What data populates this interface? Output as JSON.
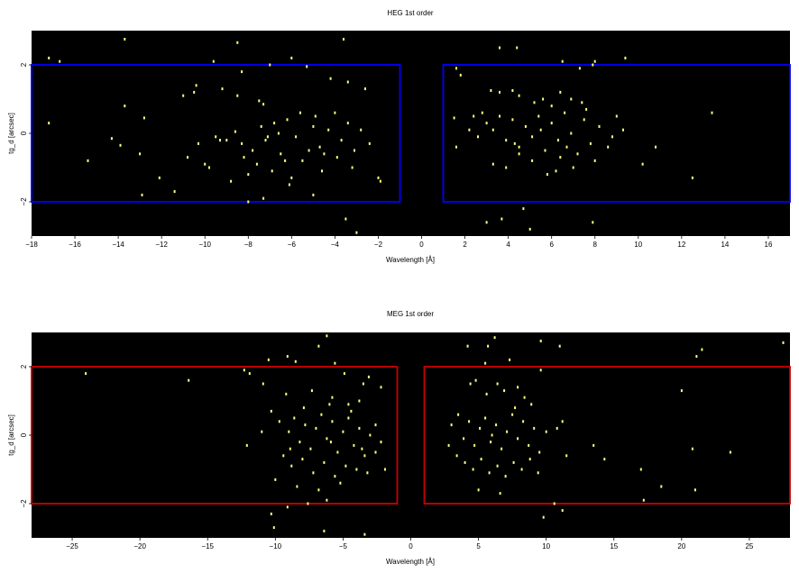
{
  "chart_data": [
    {
      "type": "scatter",
      "title": "HEG 1st order",
      "xlabel": "Wavelength [Å]",
      "ylabel": "tg_d [arcsec]",
      "xlim": [
        -18,
        17
      ],
      "ylim": [
        -3,
        3
      ],
      "xticks": [
        -18,
        -16,
        -14,
        -12,
        -10,
        -8,
        -6,
        -4,
        -2,
        0,
        2,
        4,
        6,
        8,
        10,
        12,
        14,
        16
      ],
      "yticks": [
        -2,
        0,
        2
      ],
      "background": "#000000",
      "point_color": "#ffff80",
      "region_color": "#0000ff",
      "regions": [
        {
          "x": [
            -18,
            -1
          ],
          "y": [
            -2,
            2
          ]
        },
        {
          "x": [
            1,
            17
          ],
          "y": [
            -2,
            2
          ]
        }
      ],
      "points": [
        [
          -13.7,
          2.75
        ],
        [
          -8.5,
          2.65
        ],
        [
          -3.6,
          2.75
        ],
        [
          -17.2,
          2.2
        ],
        [
          -16.7,
          2.1
        ],
        [
          -9.6,
          2.1
        ],
        [
          -6.0,
          2.2
        ],
        [
          -7.0,
          2.0
        ],
        [
          -5.3,
          1.95
        ],
        [
          -8.3,
          1.8
        ],
        [
          -11.0,
          1.1
        ],
        [
          -10.5,
          1.2
        ],
        [
          -10.4,
          1.4
        ],
        [
          -9.2,
          1.3
        ],
        [
          -8.5,
          1.1
        ],
        [
          -7.5,
          0.95
        ],
        [
          -7.3,
          0.85
        ],
        [
          -4.2,
          1.6
        ],
        [
          -3.4,
          1.5
        ],
        [
          -2.6,
          1.3
        ],
        [
          -13.7,
          0.8
        ],
        [
          -12.8,
          0.45
        ],
        [
          -17.2,
          0.3
        ],
        [
          -14.3,
          -0.15
        ],
        [
          -13.9,
          -0.35
        ],
        [
          -15.4,
          -0.8
        ],
        [
          -13.0,
          -0.6
        ],
        [
          -12.1,
          -1.3
        ],
        [
          -10.0,
          -0.9
        ],
        [
          -10.8,
          -0.7
        ],
        [
          -9.0,
          -0.2
        ],
        [
          -8.6,
          0.05
        ],
        [
          -8.3,
          -0.3
        ],
        [
          -7.8,
          -0.5
        ],
        [
          -7.2,
          -0.2
        ],
        [
          -6.8,
          0.3
        ],
        [
          -6.5,
          -0.6
        ],
        [
          -6.2,
          0.4
        ],
        [
          -5.8,
          -0.1
        ],
        [
          -5.5,
          -0.8
        ],
        [
          -5.0,
          0.2
        ],
        [
          -4.7,
          -0.4
        ],
        [
          -4.3,
          0.1
        ],
        [
          -4.0,
          0.6
        ],
        [
          -3.7,
          -0.2
        ],
        [
          -3.4,
          0.3
        ],
        [
          -3.1,
          -0.5
        ],
        [
          -2.8,
          0.1
        ],
        [
          -2.4,
          -0.3
        ],
        [
          -2.0,
          -1.3
        ],
        [
          -9.3,
          -0.2
        ],
        [
          -9.8,
          -1.0
        ],
        [
          -8.0,
          -1.2
        ],
        [
          -7.6,
          -0.9
        ],
        [
          -6.9,
          -1.1
        ],
        [
          -6.0,
          -1.3
        ],
        [
          -4.5,
          -0.6
        ],
        [
          -3.2,
          -1.0
        ],
        [
          -8.8,
          -1.4
        ],
        [
          -7.1,
          -0.1
        ],
        [
          -6.6,
          0.0
        ],
        [
          -5.2,
          -0.5
        ],
        [
          -4.9,
          0.5
        ],
        [
          -3.9,
          -0.7
        ],
        [
          -5.6,
          0.6
        ],
        [
          -7.4,
          0.2
        ],
        [
          -8.2,
          -0.7
        ],
        [
          -9.5,
          -0.1
        ],
        [
          -8.0,
          -2.0
        ],
        [
          -7.3,
          -1.9
        ],
        [
          -6.1,
          -1.5
        ],
        [
          -3.5,
          -2.5
        ],
        [
          -5.0,
          -1.8
        ],
        [
          -11.4,
          -1.7
        ],
        [
          -12.9,
          -1.8
        ],
        [
          -10.3,
          -0.3
        ],
        [
          -3.0,
          -2.9
        ],
        [
          -1.9,
          -1.4
        ],
        [
          -4.6,
          -1.1
        ],
        [
          -6.3,
          -0.8
        ],
        [
          1.6,
          1.9
        ],
        [
          1.8,
          1.7
        ],
        [
          3.6,
          2.5
        ],
        [
          4.4,
          2.5
        ],
        [
          6.5,
          2.1
        ],
        [
          7.3,
          1.9
        ],
        [
          7.9,
          2.0
        ],
        [
          9.4,
          2.2
        ],
        [
          8.0,
          2.1
        ],
        [
          3.2,
          1.25
        ],
        [
          3.6,
          1.2
        ],
        [
          4.2,
          1.25
        ],
        [
          4.5,
          1.1
        ],
        [
          5.2,
          0.9
        ],
        [
          5.6,
          1.0
        ],
        [
          6.0,
          0.8
        ],
        [
          6.4,
          1.2
        ],
        [
          6.9,
          1.0
        ],
        [
          7.4,
          0.9
        ],
        [
          1.5,
          0.45
        ],
        [
          2.4,
          0.5
        ],
        [
          2.8,
          0.6
        ],
        [
          3.0,
          0.3
        ],
        [
          3.3,
          0.1
        ],
        [
          3.6,
          0.5
        ],
        [
          3.9,
          -0.2
        ],
        [
          4.2,
          0.4
        ],
        [
          4.5,
          -0.4
        ],
        [
          4.8,
          0.2
        ],
        [
          5.1,
          -0.1
        ],
        [
          5.4,
          0.5
        ],
        [
          5.7,
          -0.5
        ],
        [
          6.0,
          0.3
        ],
        [
          6.3,
          -0.2
        ],
        [
          6.6,
          0.6
        ],
        [
          6.9,
          0.0
        ],
        [
          7.2,
          -0.6
        ],
        [
          7.5,
          0.4
        ],
        [
          7.8,
          -0.3
        ],
        [
          8.2,
          0.2
        ],
        [
          8.6,
          -0.4
        ],
        [
          9.0,
          0.5
        ],
        [
          9.3,
          0.1
        ],
        [
          10.8,
          -0.4
        ],
        [
          13.4,
          0.6
        ],
        [
          1.6,
          -0.4
        ],
        [
          2.6,
          -0.1
        ],
        [
          3.3,
          -0.9
        ],
        [
          3.9,
          -1.0
        ],
        [
          4.5,
          -0.6
        ],
        [
          5.1,
          -0.8
        ],
        [
          5.8,
          -1.2
        ],
        [
          6.4,
          -0.7
        ],
        [
          7.0,
          -1.0
        ],
        [
          8.0,
          -0.8
        ],
        [
          10.2,
          -0.9
        ],
        [
          12.5,
          -1.3
        ],
        [
          4.7,
          -2.2
        ],
        [
          3.7,
          -2.5
        ],
        [
          3.0,
          -2.6
        ],
        [
          5.0,
          -2.8
        ],
        [
          7.9,
          -2.6
        ],
        [
          6.2,
          -1.1
        ],
        [
          4.3,
          -0.3
        ],
        [
          5.5,
          0.1
        ],
        [
          6.7,
          -0.4
        ],
        [
          7.6,
          0.7
        ],
        [
          8.8,
          -0.1
        ],
        [
          2.2,
          0.1
        ]
      ]
    },
    {
      "type": "scatter",
      "title": "MEG 1st order",
      "xlabel": "Wavelength [Å]",
      "ylabel": "tg_d [arcsec]",
      "xlim": [
        -28,
        28
      ],
      "ylim": [
        -3,
        3
      ],
      "xticks": [
        -25,
        -20,
        -15,
        -10,
        -5,
        0,
        5,
        10,
        15,
        20,
        25
      ],
      "yticks": [
        -2,
        0,
        2
      ],
      "background": "#000000",
      "point_color": "#ffff80",
      "region_color": "#cc0000",
      "regions": [
        {
          "x": [
            -28,
            -1
          ],
          "y": [
            -2,
            2
          ]
        },
        {
          "x": [
            1,
            28
          ],
          "y": [
            -2,
            2
          ]
        }
      ],
      "points": [
        [
          -6.2,
          2.9
        ],
        [
          -6.8,
          2.6
        ],
        [
          -9.1,
          2.3
        ],
        [
          -10.5,
          2.2
        ],
        [
          -5.6,
          2.1
        ],
        [
          -8.5,
          2.15
        ],
        [
          -24.0,
          1.8
        ],
        [
          -16.4,
          1.6
        ],
        [
          -12.3,
          1.9
        ],
        [
          -11.9,
          1.8
        ],
        [
          -4.9,
          1.8
        ],
        [
          -3.1,
          1.7
        ],
        [
          -3.5,
          1.5
        ],
        [
          -2.2,
          1.4
        ],
        [
          -10.9,
          1.5
        ],
        [
          -9.2,
          1.2
        ],
        [
          -7.3,
          1.3
        ],
        [
          -5.8,
          1.1
        ],
        [
          -4.6,
          0.9
        ],
        [
          -3.8,
          1.0
        ],
        [
          -10.3,
          0.7
        ],
        [
          -9.7,
          0.4
        ],
        [
          -9.0,
          0.1
        ],
        [
          -8.6,
          0.5
        ],
        [
          -8.2,
          -0.2
        ],
        [
          -7.8,
          0.3
        ],
        [
          -7.4,
          -0.4
        ],
        [
          -7.0,
          0.2
        ],
        [
          -6.6,
          0.6
        ],
        [
          -6.2,
          -0.1
        ],
        [
          -5.8,
          0.4
        ],
        [
          -5.4,
          -0.5
        ],
        [
          -5.0,
          0.1
        ],
        [
          -4.6,
          0.5
        ],
        [
          -4.2,
          -0.3
        ],
        [
          -3.8,
          0.2
        ],
        [
          -3.4,
          -0.6
        ],
        [
          -3.0,
          0.0
        ],
        [
          -2.6,
          0.3
        ],
        [
          -2.2,
          -0.2
        ],
        [
          -9.4,
          -0.6
        ],
        [
          -8.8,
          -0.9
        ],
        [
          -8.0,
          -0.7
        ],
        [
          -7.2,
          -1.1
        ],
        [
          -6.4,
          -0.8
        ],
        [
          -5.6,
          -1.2
        ],
        [
          -4.8,
          -0.9
        ],
        [
          -4.0,
          -1.0
        ],
        [
          -3.2,
          -1.1
        ],
        [
          -12.1,
          -0.3
        ],
        [
          -10.0,
          -1.3
        ],
        [
          -8.4,
          -1.5
        ],
        [
          -6.8,
          -1.6
        ],
        [
          -5.2,
          -1.4
        ],
        [
          -9.1,
          -2.1
        ],
        [
          -7.6,
          -2.0
        ],
        [
          -6.2,
          -1.9
        ],
        [
          -10.3,
          -2.3
        ],
        [
          -10.1,
          -2.7
        ],
        [
          -6.4,
          -2.8
        ],
        [
          -3.4,
          -2.9
        ],
        [
          -2.6,
          -0.5
        ],
        [
          -1.9,
          -1.0
        ],
        [
          -11.0,
          0.1
        ],
        [
          -7.9,
          0.8
        ],
        [
          -6.0,
          0.9
        ],
        [
          -4.4,
          0.7
        ],
        [
          -3.6,
          -0.4
        ],
        [
          -8.9,
          -0.4
        ],
        [
          -5.9,
          -0.2
        ],
        [
          6.2,
          2.85
        ],
        [
          9.6,
          2.75
        ],
        [
          5.7,
          2.6
        ],
        [
          4.2,
          2.6
        ],
        [
          11.0,
          2.6
        ],
        [
          21.5,
          2.5
        ],
        [
          21.1,
          2.3
        ],
        [
          27.5,
          2.7
        ],
        [
          7.3,
          2.2
        ],
        [
          5.5,
          2.1
        ],
        [
          9.6,
          1.9
        ],
        [
          4.8,
          1.6
        ],
        [
          6.4,
          1.5
        ],
        [
          7.9,
          1.4
        ],
        [
          5.6,
          1.2
        ],
        [
          8.4,
          1.1
        ],
        [
          6.9,
          1.3
        ],
        [
          20.0,
          1.3
        ],
        [
          3.0,
          0.3
        ],
        [
          3.5,
          0.6
        ],
        [
          3.9,
          -0.1
        ],
        [
          4.3,
          0.4
        ],
        [
          4.7,
          -0.3
        ],
        [
          5.1,
          0.2
        ],
        [
          5.5,
          0.5
        ],
        [
          5.9,
          -0.2
        ],
        [
          6.3,
          0.3
        ],
        [
          6.7,
          -0.4
        ],
        [
          7.1,
          0.1
        ],
        [
          7.5,
          0.6
        ],
        [
          7.9,
          -0.1
        ],
        [
          8.3,
          0.4
        ],
        [
          8.7,
          -0.3
        ],
        [
          9.1,
          0.2
        ],
        [
          9.5,
          -0.5
        ],
        [
          10.0,
          0.1
        ],
        [
          10.8,
          0.2
        ],
        [
          11.2,
          0.4
        ],
        [
          2.8,
          -0.3
        ],
        [
          3.4,
          -0.6
        ],
        [
          4.0,
          -0.8
        ],
        [
          4.6,
          -1.0
        ],
        [
          5.2,
          -0.7
        ],
        [
          5.8,
          -1.1
        ],
        [
          6.4,
          -0.9
        ],
        [
          7.0,
          -1.2
        ],
        [
          7.6,
          -0.8
        ],
        [
          8.2,
          -1.0
        ],
        [
          8.8,
          -0.7
        ],
        [
          9.4,
          -1.1
        ],
        [
          11.5,
          -0.6
        ],
        [
          13.5,
          -0.3
        ],
        [
          17.0,
          -1.0
        ],
        [
          17.2,
          -1.9
        ],
        [
          18.5,
          -1.5
        ],
        [
          21.0,
          -1.6
        ],
        [
          23.6,
          -0.5
        ],
        [
          20.8,
          -0.4
        ],
        [
          5.0,
          -1.6
        ],
        [
          6.6,
          -1.7
        ],
        [
          10.6,
          -2.0
        ],
        [
          11.2,
          -2.2
        ],
        [
          9.8,
          -2.4
        ],
        [
          14.3,
          -0.7
        ],
        [
          4.4,
          1.5
        ],
        [
          6.0,
          0.0
        ],
        [
          7.7,
          0.8
        ],
        [
          8.9,
          0.9
        ]
      ]
    }
  ]
}
